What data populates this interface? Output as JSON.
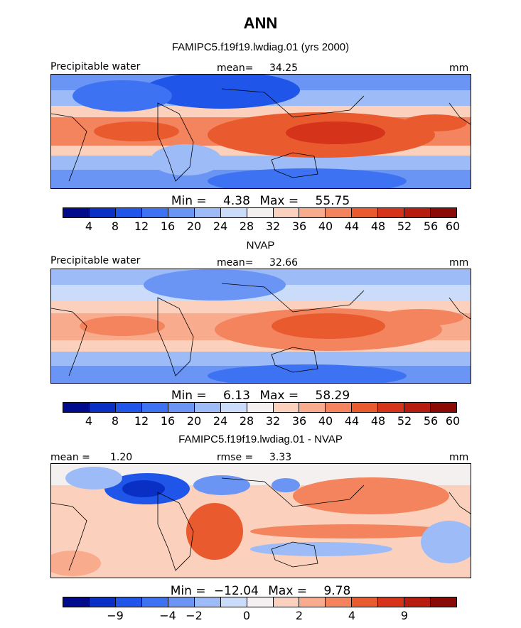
{
  "header": {
    "title": "ANN",
    "subtitle": "FAMIPC5.f19f19.lwdiag.01 (yrs 2000)"
  },
  "colors": {
    "precip_scale": [
      "#000c8b",
      "#0a2fc4",
      "#1f55e8",
      "#3d73f2",
      "#6a95f4",
      "#9dbcf7",
      "#cadcf9",
      "#f4f0ef",
      "#fbd1bd",
      "#f8ab8d",
      "#f3845e",
      "#ea5a2f",
      "#d6341a",
      "#b71d0e",
      "#8a0b05"
    ],
    "diff_scale": [
      "#000c8b",
      "#0a2fc4",
      "#1f55e8",
      "#3d73f2",
      "#6a95f4",
      "#9dbcf7",
      "#cadcf9",
      "#f4f0ef",
      "#fbd1bd",
      "#f8ab8d",
      "#f3845e",
      "#ea5a2f",
      "#d6341a",
      "#b71d0e",
      "#8a0b05"
    ]
  },
  "chart_data": [
    {
      "type": "heatmap",
      "title": "FAMIPC5.f19f19.lwdiag.01 (yrs 2000)",
      "variable": "Precipitable water",
      "units": "mm",
      "mean_label": "mean=",
      "mean": "34.25",
      "min_label": "Min =",
      "min": "4.38",
      "max_label": "Max =",
      "max": "55.75",
      "colorbar_ticks": [
        "4",
        "8",
        "12",
        "16",
        "20",
        "24",
        "28",
        "32",
        "36",
        "40",
        "44",
        "48",
        "52",
        "56",
        "60"
      ]
    },
    {
      "type": "heatmap",
      "title": "NVAP",
      "variable": "Precipitable water",
      "units": "mm",
      "mean_label": "mean=",
      "mean": "32.66",
      "min_label": "Min =",
      "min": "6.13",
      "max_label": "Max =",
      "max": "58.29",
      "colorbar_ticks": [
        "4",
        "8",
        "12",
        "16",
        "20",
        "24",
        "28",
        "32",
        "36",
        "40",
        "44",
        "48",
        "52",
        "56",
        "60"
      ]
    },
    {
      "type": "heatmap",
      "title": "FAMIPC5.f19f19.lwdiag.01 - NVAP",
      "units": "mm",
      "mean_label": "mean =",
      "mean": "1.20",
      "rmse_label": "rmse =",
      "rmse": "3.33",
      "min_label": "Min =",
      "min": "−12.04",
      "max_label": "Max =",
      "max": "9.78",
      "colorbar_ticks": [
        "−9",
        "−4",
        "−2",
        "0",
        "2",
        "4",
        "9"
      ]
    }
  ]
}
